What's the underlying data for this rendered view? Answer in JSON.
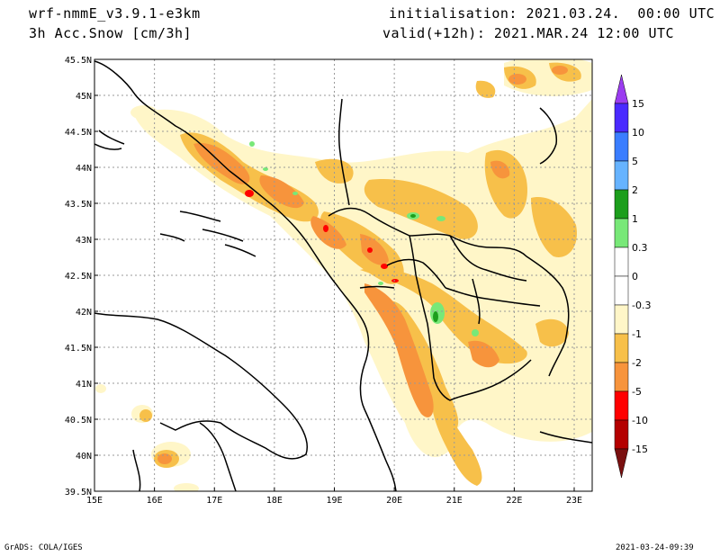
{
  "header": {
    "model": "wrf-nmmE_v3.9.1-e3km",
    "field": "3h Acc.Snow [cm/3h]",
    "init": "initialisation: 2021.03.24.  00:00 UTC",
    "valid": "valid(+12h): 2021.MAR.24 12:00 UTC"
  },
  "footer": {
    "left": "GrADS: COLA/IGES",
    "right": "2021-03-24-09:39"
  },
  "map": {
    "lon_range": [
      15,
      23.3
    ],
    "lat_range": [
      39.5,
      45.5
    ],
    "lat_ticks": [
      "45.5N",
      "45N",
      "44.5N",
      "44N",
      "43.5N",
      "43N",
      "42.5N",
      "42N",
      "41.5N",
      "41N",
      "40.5N",
      "40N",
      "39.5N"
    ],
    "lon_ticks": [
      "15E",
      "16E",
      "17E",
      "18E",
      "19E",
      "20E",
      "21E",
      "22E",
      "23E"
    ]
  },
  "colorbar": {
    "labels": [
      "15",
      "10",
      "5",
      "2",
      "1",
      "0.3",
      "0",
      "-0.3",
      "-1",
      "-2",
      "-5",
      "-10",
      "-15"
    ],
    "colors": [
      "#4a2aff",
      "#3a7dff",
      "#66b3ff",
      "#1c9e1c",
      "#78e878",
      "#ffffff",
      "#ffffff",
      "#fff6c8",
      "#f7c04a",
      "#f7943c",
      "#ff0000",
      "#b40000"
    ],
    "top_color": "#9b3cf0",
    "bottom_color": "#7a1010"
  }
}
